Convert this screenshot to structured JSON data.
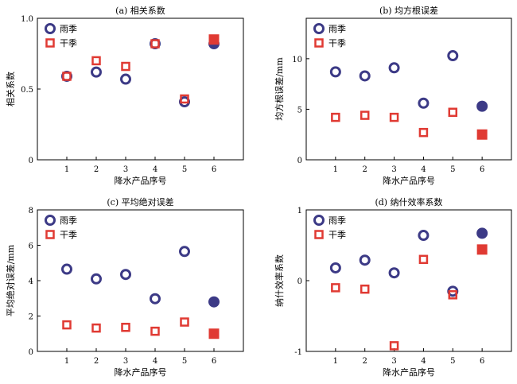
{
  "figure": {
    "colors": {
      "rainy": "#3c3a86",
      "dry": "#e03a33"
    }
  },
  "chart_data": [
    {
      "type": "scatter",
      "title": "(a) 相关系数",
      "xlabel": "降水产品序号",
      "ylabel": "相关系数",
      "xlim": [
        0,
        7
      ],
      "ylim": [
        0,
        1.0
      ],
      "xticks": [
        1,
        2,
        3,
        4,
        5,
        6
      ],
      "yticks": [
        0,
        0.5,
        1.0
      ],
      "ytick_labels": [
        "0",
        "0.5",
        "1.0"
      ],
      "grid": false,
      "legend_position": "top-left",
      "series": [
        {
          "name": "雨季",
          "marker": "circle",
          "x": [
            1,
            2,
            3,
            4,
            5,
            6
          ],
          "y": [
            0.59,
            0.62,
            0.57,
            0.82,
            0.41,
            0.82
          ],
          "filled_last": true
        },
        {
          "name": "干季",
          "marker": "square",
          "x": [
            1,
            2,
            3,
            4,
            5,
            6
          ],
          "y": [
            0.59,
            0.7,
            0.66,
            0.82,
            0.43,
            0.85
          ],
          "filled_last": true
        }
      ]
    },
    {
      "type": "scatter",
      "title": "(b) 均方根误差",
      "xlabel": "降水产品序号",
      "ylabel": "均方根误差/mm",
      "xlim": [
        0,
        7
      ],
      "ylim": [
        0,
        14
      ],
      "xticks": [
        1,
        2,
        3,
        4,
        5,
        6
      ],
      "yticks": [
        0,
        5,
        10
      ],
      "ytick_labels": [
        "0",
        "5",
        "10"
      ],
      "grid": false,
      "legend_position": "top-left",
      "series": [
        {
          "name": "雨季",
          "marker": "circle",
          "x": [
            1,
            2,
            3,
            4,
            5,
            6
          ],
          "y": [
            8.7,
            8.3,
            9.1,
            5.6,
            10.3,
            5.3
          ],
          "filled_last": true
        },
        {
          "name": "干季",
          "marker": "square",
          "x": [
            1,
            2,
            3,
            4,
            5,
            6
          ],
          "y": [
            4.2,
            4.4,
            4.2,
            2.7,
            4.7,
            2.5
          ],
          "filled_last": true
        }
      ]
    },
    {
      "type": "scatter",
      "title": "(c) 平均绝对误差",
      "xlabel": "降水产品序号",
      "ylabel": "平均绝对误差/mm",
      "xlim": [
        0,
        7
      ],
      "ylim": [
        0,
        8
      ],
      "xticks": [
        1,
        2,
        3,
        4,
        5,
        6
      ],
      "yticks": [
        0,
        2,
        4,
        6,
        8
      ],
      "ytick_labels": [
        "0",
        "2",
        "4",
        "6",
        "8"
      ],
      "grid": false,
      "legend_position": "top-left",
      "series": [
        {
          "name": "雨季",
          "marker": "circle",
          "x": [
            1,
            2,
            3,
            4,
            5,
            6
          ],
          "y": [
            4.65,
            4.1,
            4.35,
            2.98,
            5.65,
            2.8
          ],
          "filled_last": true
        },
        {
          "name": "干季",
          "marker": "square",
          "x": [
            1,
            2,
            3,
            4,
            5,
            6
          ],
          "y": [
            1.5,
            1.32,
            1.36,
            1.14,
            1.66,
            1.0
          ],
          "filled_last": true
        }
      ]
    },
    {
      "type": "scatter",
      "title": "(d) 纳什效率系数",
      "xlabel": "降水产品序号",
      "ylabel": "纳什效率系数",
      "xlim": [
        0,
        7
      ],
      "ylim": [
        -1,
        1
      ],
      "xticks": [
        1,
        2,
        3,
        4,
        5,
        6
      ],
      "yticks": [
        -1,
        0,
        1
      ],
      "ytick_labels": [
        "-1",
        "0",
        "1"
      ],
      "grid": false,
      "legend_position": "top-left",
      "series": [
        {
          "name": "雨季",
          "marker": "circle",
          "x": [
            1,
            2,
            3,
            4,
            5,
            6
          ],
          "y": [
            0.18,
            0.29,
            0.11,
            0.64,
            -0.15,
            0.67
          ],
          "filled_last": true
        },
        {
          "name": "干季",
          "marker": "square",
          "x": [
            1,
            2,
            3,
            4,
            5,
            6
          ],
          "y": [
            -0.1,
            -0.12,
            -0.92,
            0.3,
            -0.2,
            0.44
          ],
          "filled_last": true
        }
      ]
    }
  ]
}
